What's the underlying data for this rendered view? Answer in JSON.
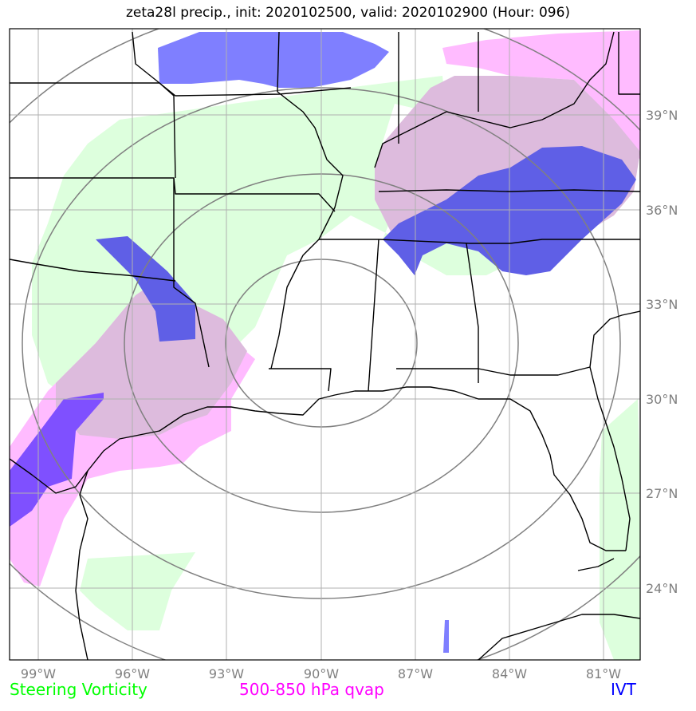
{
  "title": "zeta28l precip., init: 2020102500, valid: 2020102900 (Hour: 096)",
  "legend": {
    "left": {
      "label": "Steering Vorticity",
      "color": "#00ff00"
    },
    "middle": {
      "label": "500-850 hPa qvap",
      "color": "#ff00ff"
    },
    "right": {
      "label": "IVT",
      "color": "#0000ff"
    }
  },
  "lon_labels": [
    "99°W",
    "96°W",
    "93°W",
    "90°W",
    "87°W",
    "84°W",
    "81°W"
  ],
  "lat_labels": [
    "39°N",
    "36°N",
    "33°N",
    "30°N",
    "27°N",
    "24°N"
  ],
  "colors": {
    "steering_vorticity_fill": "#ddffdd",
    "qvap_fill": "#ffbbff",
    "ivt_fill": "#7f7fff",
    "overlap_fill": "#ddbbdd",
    "grid": "#808080",
    "coast": "#000000"
  }
}
